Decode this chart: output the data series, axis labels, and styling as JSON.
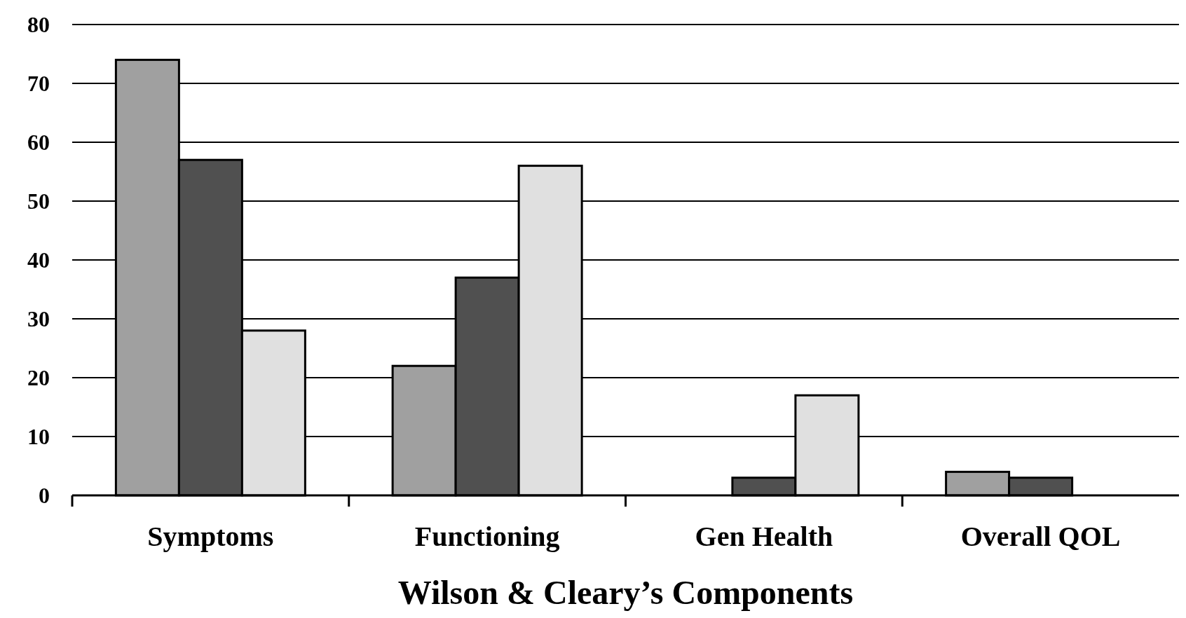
{
  "chart_data": {
    "type": "bar",
    "xlabel": "Wilson & Cleary’s Components",
    "categories": [
      "Symptoms",
      "Functioning",
      "Gen Health",
      "Overall QOL"
    ],
    "series": [
      {
        "color": "#a0a0a0",
        "values": [
          74,
          22,
          null,
          4
        ]
      },
      {
        "color": "#505050",
        "values": [
          57,
          37,
          3,
          3
        ]
      },
      {
        "color": "#e0e0e0",
        "values": [
          28,
          56,
          17,
          null
        ]
      }
    ],
    "ylim": [
      0,
      80
    ],
    "yticks": [
      0,
      10,
      20,
      30,
      40,
      50,
      60,
      70,
      80
    ],
    "grid": "y"
  }
}
